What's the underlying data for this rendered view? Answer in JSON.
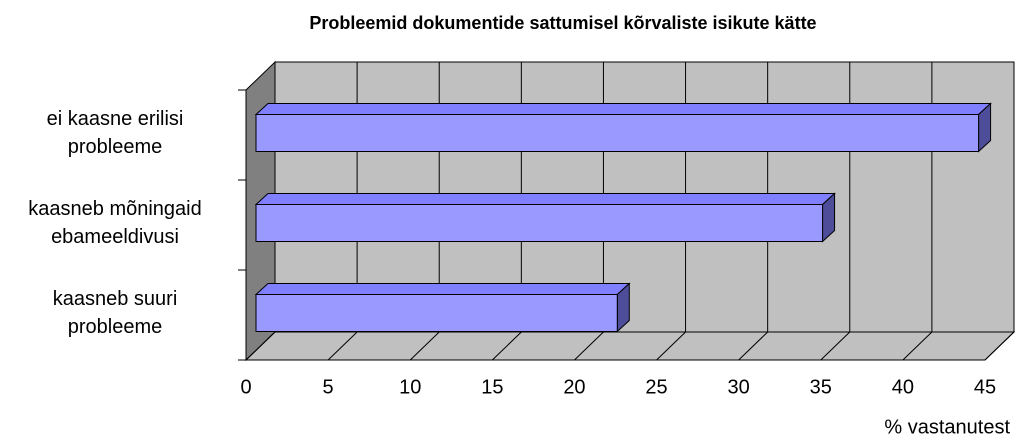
{
  "chart_data": {
    "type": "bar3d",
    "title": "Probleemid dokumentide sattumisel kõrvaliste isikute kätte",
    "x_label": "% vastanutest",
    "categories": [
      "ei kaasne erilisi probleeme",
      "kaasneb mõningaid ebameeldivusi",
      "kaasneb suuri probleeme"
    ],
    "values": [
      44,
      34.5,
      22
    ],
    "color": "#9999ff",
    "xlim": [
      0,
      45
    ],
    "xticks": [
      0,
      5,
      10,
      15,
      20,
      25,
      30,
      35,
      40,
      45
    ],
    "grid": true
  }
}
